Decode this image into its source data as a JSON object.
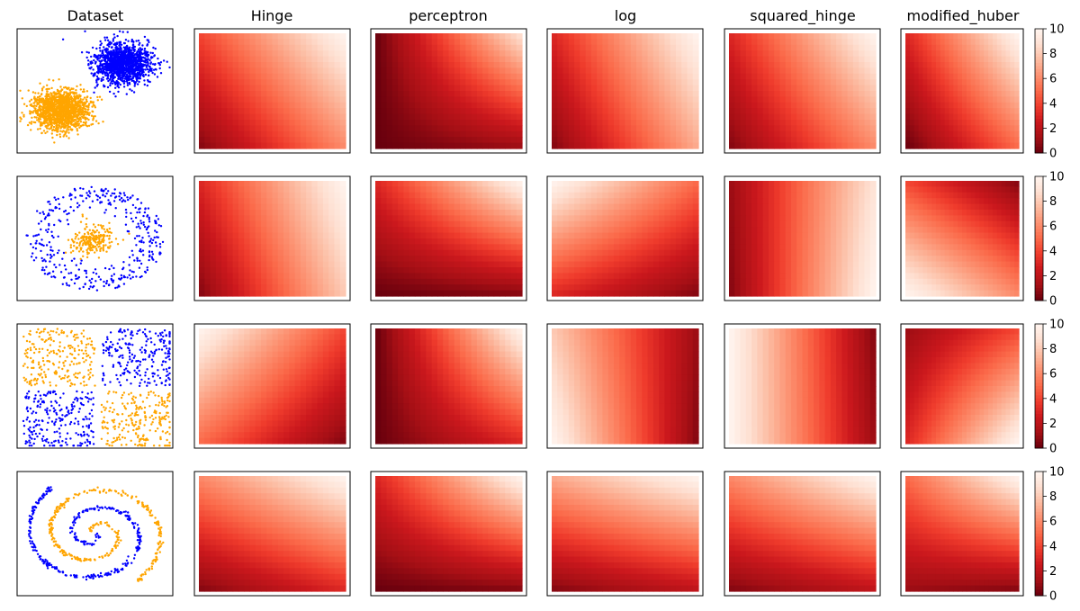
{
  "columns": [
    "Dataset",
    "Hinge",
    "perceptron",
    "log",
    "squared_hinge",
    "modified_huber"
  ],
  "colorbar": {
    "ticks": [
      "0",
      "2",
      "4",
      "6",
      "8",
      "10"
    ],
    "range": [
      0,
      10
    ],
    "colormap": "Reds_r"
  },
  "colors": {
    "class_a": "#0000ff",
    "class_b": "#ffa500",
    "dark_red": "#67000d",
    "white": "#fff5f0"
  },
  "chart_data": [
    {
      "type": "scatter",
      "row": 1,
      "dataset": "two gaussian blobs",
      "series": [
        {
          "color": "blue",
          "center": [
            0.68,
            0.28
          ],
          "spread": [
            0.09,
            0.08
          ]
        },
        {
          "color": "orange",
          "center": [
            0.28,
            0.65
          ],
          "spread": [
            0.09,
            0.08
          ]
        }
      ]
    },
    {
      "type": "heatmap",
      "row": 1,
      "note": "decision-function heatmaps, value at corners [top-left, top-right, bottom-left, bottom-right]",
      "panels": {
        "Hinge": [
          4,
          10,
          0.5,
          6
        ],
        "perceptron": [
          0,
          9,
          0,
          1
        ],
        "log": [
          3,
          10,
          0.5,
          7
        ],
        "squared_hinge": [
          3,
          10,
          0.5,
          6
        ],
        "modified_huber": [
          3,
          10,
          0,
          5
        ]
      }
    },
    {
      "type": "scatter",
      "row": 2,
      "dataset": "ring and center",
      "series": [
        {
          "color": "blue",
          "shape": "ring",
          "radius": 0.42
        },
        {
          "color": "orange",
          "shape": "blob",
          "center": [
            0.48,
            0.52
          ],
          "spread": [
            0.07,
            0.06
          ]
        }
      ]
    },
    {
      "type": "heatmap",
      "row": 2,
      "panels": {
        "Hinge": [
          3,
          10,
          0.5,
          8
        ],
        "perceptron": [
          3,
          10,
          0,
          0.5
        ],
        "log": [
          10,
          5,
          3,
          0.5
        ],
        "squared_hinge": [
          1,
          9,
          0.5,
          10
        ],
        "modified_huber": [
          4,
          0.5,
          10,
          6
        ]
      }
    },
    {
      "type": "scatter",
      "row": 3,
      "dataset": "XOR quadrants",
      "series": [
        {
          "color": "blue",
          "quadrants": [
            "top-right",
            "bottom-left"
          ]
        },
        {
          "color": "orange",
          "quadrants": [
            "top-left",
            "bottom-right"
          ]
        }
      ]
    },
    {
      "type": "heatmap",
      "row": 3,
      "panels": {
        "Hinge": [
          10,
          4,
          5,
          0.5
        ],
        "perceptron": [
          0,
          10,
          0,
          3
        ],
        "log": [
          8,
          1,
          10,
          0.5
        ],
        "squared_hinge": [
          10,
          0.5,
          10,
          1
        ],
        "modified_huber": [
          1,
          4,
          3,
          10
        ]
      }
    },
    {
      "type": "scatter",
      "row": 4,
      "dataset": "two spirals",
      "series": [
        {
          "color": "blue",
          "shape": "spiral",
          "phase": 0
        },
        {
          "color": "orange",
          "shape": "spiral",
          "phase": 3.14159
        }
      ]
    },
    {
      "type": "heatmap",
      "row": 4,
      "panels": {
        "Hinge": [
          6,
          10,
          0.5,
          3
        ],
        "perceptron": [
          3,
          10,
          0,
          0.5
        ],
        "log": [
          7,
          10,
          0.5,
          2
        ],
        "squared_hinge": [
          6,
          10,
          0.5,
          2
        ],
        "modified_huber": [
          5,
          10,
          1,
          0.5
        ]
      }
    }
  ]
}
